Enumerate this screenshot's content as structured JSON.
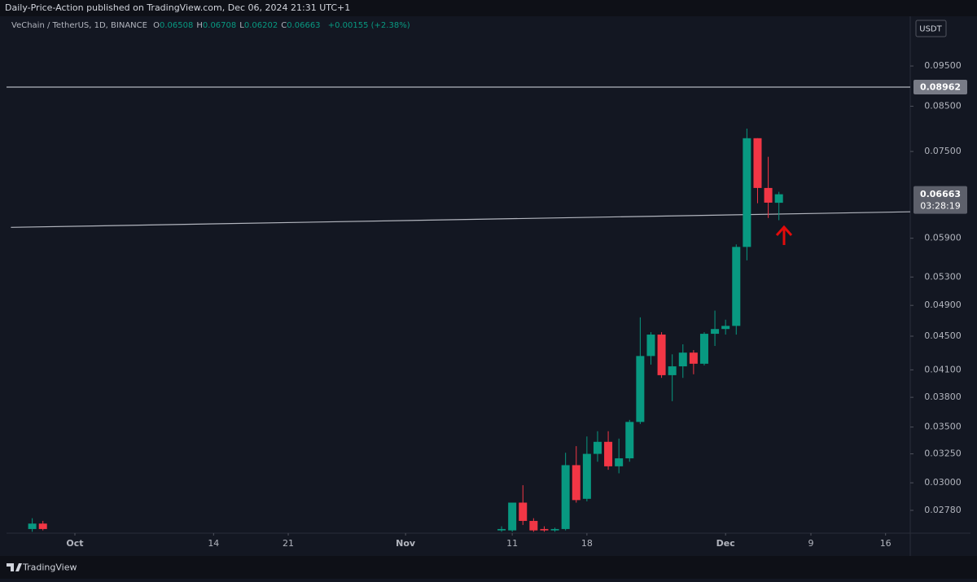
{
  "chart_data": {
    "type": "candlestick",
    "header": "Daily-Price-Action published on TradingView.com, Dec 06, 2024 21:31 UTC+1",
    "symbol": "VeChain / TetherUS, 1D, BINANCE",
    "ohlc_letters": [
      "O",
      "H",
      "L",
      "C"
    ],
    "change": "+0.00155 (+2.38%)",
    "currency": "USDT",
    "countdown": "03:28:19",
    "brand": "TradingView",
    "up_color": "#089981",
    "down_color": "#f23645",
    "log_scale": true,
    "grid": false,
    "x": [
      "2024-09-27",
      "2024-09-28",
      "2024-11-10",
      "2024-11-11",
      "2024-11-12",
      "2024-11-13",
      "2024-11-14",
      "2024-11-15",
      "2024-11-16",
      "2024-11-17",
      "2024-11-18",
      "2024-11-19",
      "2024-11-20",
      "2024-11-21",
      "2024-11-22",
      "2024-11-23",
      "2024-11-24",
      "2024-11-25",
      "2024-11-26",
      "2024-11-27",
      "2024-11-28",
      "2024-11-29",
      "2024-11-30",
      "2024-12-01",
      "2024-12-02",
      "2024-12-03",
      "2024-12-04",
      "2024-12-05",
      "2024-12-06"
    ],
    "open": [
      0.0264,
      0.0268,
      0.0263,
      0.0263,
      0.0284,
      0.027,
      0.0264,
      0.0263,
      0.0264,
      0.0315,
      0.0287,
      0.0325,
      0.0336,
      0.0314,
      0.0321,
      0.0355,
      0.0426,
      0.0452,
      0.0404,
      0.0414,
      0.043,
      0.0417,
      0.0453,
      0.0459,
      0.0463,
      0.0576,
      0.0778,
      0.0678,
      0.06508
    ],
    "high": [
      0.0272,
      0.027,
      0.0266,
      0.0284,
      0.0298,
      0.0272,
      0.0266,
      0.0265,
      0.0326,
      0.0332,
      0.0341,
      0.0346,
      0.0346,
      0.0339,
      0.0357,
      0.0474,
      0.0455,
      0.0455,
      0.0428,
      0.044,
      0.0433,
      0.0455,
      0.0483,
      0.0471,
      0.058,
      0.0799,
      0.0778,
      0.0739,
      0.06708
    ],
    "low": [
      0.0262,
      0.0263,
      0.0262,
      0.0262,
      0.0267,
      0.0262,
      0.0262,
      0.0262,
      0.0263,
      0.0284,
      0.0285,
      0.0318,
      0.0311,
      0.0308,
      0.0318,
      0.0353,
      0.0416,
      0.0401,
      0.0376,
      0.0401,
      0.0405,
      0.0415,
      0.0438,
      0.0452,
      0.0452,
      0.0555,
      0.065,
      0.0624,
      0.06202
    ],
    "close": [
      0.0268,
      0.0264,
      0.0264,
      0.0284,
      0.027,
      0.0263,
      0.0263,
      0.0264,
      0.0315,
      0.0286,
      0.0325,
      0.0336,
      0.0314,
      0.0321,
      0.0355,
      0.0426,
      0.0452,
      0.0404,
      0.0414,
      0.043,
      0.0417,
      0.0453,
      0.0459,
      0.0463,
      0.0576,
      0.0778,
      0.0678,
      0.0651,
      0.06663
    ],
    "xlim": [
      "2024-09-25",
      "2024-12-19"
    ],
    "xticks": [
      {
        "value": "2024-10-01",
        "label": "Oct"
      },
      {
        "value": "2024-10-14",
        "label": "14"
      },
      {
        "value": "2024-10-21",
        "label": "21"
      },
      {
        "value": "2024-11-01",
        "label": "Nov"
      },
      {
        "value": "2024-11-11",
        "label": "11"
      },
      {
        "value": "2024-11-18",
        "label": "18"
      },
      {
        "value": "2024-12-01",
        "label": "Dec"
      },
      {
        "value": "2024-12-09",
        "label": "9"
      },
      {
        "value": "2024-12-16",
        "label": "16"
      }
    ],
    "ylim": [
      0.0261,
      0.109
    ],
    "yticks": [
      {
        "value": 0.0278,
        "label": "0.02780"
      },
      {
        "value": 0.03,
        "label": "0.03000"
      },
      {
        "value": 0.0325,
        "label": "0.03250"
      },
      {
        "value": 0.035,
        "label": "0.03500"
      },
      {
        "value": 0.038,
        "label": "0.03800"
      },
      {
        "value": 0.041,
        "label": "0.04100"
      },
      {
        "value": 0.045,
        "label": "0.04500"
      },
      {
        "value": 0.049,
        "label": "0.04900"
      },
      {
        "value": 0.053,
        "label": "0.05300"
      },
      {
        "value": 0.059,
        "label": "0.05900"
      },
      {
        "value": 0.075,
        "label": "0.07500"
      },
      {
        "value": 0.085,
        "label": "0.08500"
      },
      {
        "value": 0.095,
        "label": "0.09500"
      }
    ],
    "hline": 0.08962,
    "trendline": {
      "x": [
        "2024-09-25",
        "2024-12-19"
      ],
      "values": [
        0.0608,
        0.0635
      ]
    }
  }
}
